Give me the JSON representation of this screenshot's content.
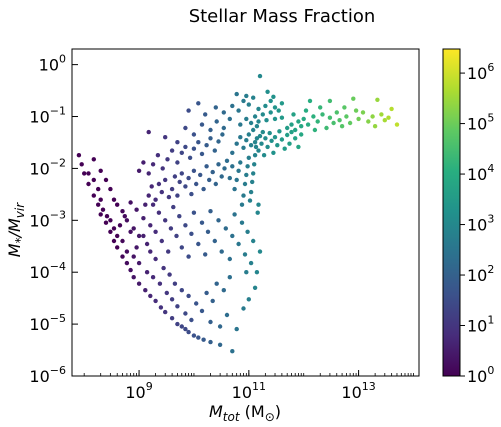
{
  "chart_data": {
    "type": "scatter",
    "title": "Stellar Mass Fraction",
    "xlabel": "M_tot (M_⊙)",
    "ylabel": "M*/M_vir",
    "x_scale": "log",
    "y_scale": "log",
    "xlim": [
      60000000,
      126000000000000.0
    ],
    "ylim": [
      1e-06,
      2.0
    ],
    "x_ticks": [
      {
        "value": 1000000000,
        "base": "10",
        "exp": "9"
      },
      {
        "value": 100000000000,
        "base": "10",
        "exp": "11"
      },
      {
        "value": 10000000000000,
        "base": "10",
        "exp": "13"
      }
    ],
    "y_ticks": [
      {
        "value": 1e-06,
        "base": "10",
        "exp": "−6"
      },
      {
        "value": 1e-05,
        "base": "10",
        "exp": "−5"
      },
      {
        "value": 0.0001,
        "base": "10",
        "exp": "−4"
      },
      {
        "value": 0.001,
        "base": "10",
        "exp": "−3"
      },
      {
        "value": 0.01,
        "base": "10",
        "exp": "−2"
      },
      {
        "value": 0.1,
        "base": "10",
        "exp": "−1"
      },
      {
        "value": 1,
        "base": "10",
        "exp": "0"
      }
    ],
    "colorbar": {
      "colormap": "viridis",
      "scale": "log",
      "range": [
        1,
        3000000
      ],
      "ticks": [
        {
          "value": 1,
          "base": "10",
          "exp": "0"
        },
        {
          "value": 10,
          "base": "10",
          "exp": "1"
        },
        {
          "value": 100,
          "base": "10",
          "exp": "2"
        },
        {
          "value": 1000,
          "base": "10",
          "exp": "3"
        },
        {
          "value": 10000,
          "base": "10",
          "exp": "4"
        },
        {
          "value": 100000,
          "base": "10",
          "exp": "5"
        },
        {
          "value": 1000000,
          "base": "10",
          "exp": "6"
        }
      ]
    },
    "grid": false,
    "legend": "none",
    "point_color_by": "colorbar value (approx. one decade per log-decade of M_tot)",
    "points": [
      [
        80000000.0,
        0.018
      ],
      [
        90000000.0,
        0.012
      ],
      [
        100000000.0,
        0.008
      ],
      [
        120000000.0,
        0.005
      ],
      [
        150000000.0,
        0.003
      ],
      [
        180000000.0,
        0.002
      ],
      [
        200000000.0,
        0.0013
      ],
      [
        250000000.0,
        0.0009
      ],
      [
        300000000.0,
        0.0006
      ],
      [
        350000000.0,
        0.0004
      ],
      [
        400000000.0,
        0.0003
      ],
      [
        500000000.0,
        0.0002
      ],
      [
        600000000.0,
        0.00015
      ],
      [
        700000000.0,
        0.00011
      ],
      [
        800000000.0,
        8e-05
      ],
      [
        1000000000.0,
        6e-05
      ],
      [
        1300000000.0,
        4.5e-05
      ],
      [
        1600000000.0,
        3.5e-05
      ],
      [
        2000000000.0,
        2.8e-05
      ],
      [
        2500000000.0,
        2.1e-05
      ],
      [
        3000000000.0,
        1.7e-05
      ],
      [
        4000000000.0,
        1.3e-05
      ],
      [
        5000000000.0,
        1e-05
      ],
      [
        6000000000.0,
        9e-06
      ],
      [
        7000000000.0,
        8e-06
      ],
      [
        8000000000.0,
        7e-06
      ],
      [
        10000000000.0,
        6e-06
      ],
      [
        12000000000.0,
        5.5e-06
      ],
      [
        15000000000.0,
        5e-06
      ],
      [
        20000000000.0,
        4.5e-06
      ],
      [
        30000000000.0,
        4e-06
      ],
      [
        50000000000.0,
        3e-06
      ],
      [
        20000000000.0,
        1.1e-05
      ],
      [
        30000000000.0,
        9e-06
      ],
      [
        40000000000.0,
        1.5e-05
      ],
      [
        60000000000.0,
        8e-06
      ],
      [
        80000000000.0,
        2e-05
      ],
      [
        100000000000.0,
        3e-05
      ],
      [
        130000000000.0,
        5e-05
      ],
      [
        90000000000.0,
        0.0001
      ],
      [
        120000000.0,
        0.008
      ],
      [
        150000000.0,
        0.006
      ],
      [
        180000000.0,
        0.004
      ],
      [
        200000000.0,
        0.0025
      ],
      [
        220000000.0,
        0.0016
      ],
      [
        260000000.0,
        0.0012
      ],
      [
        300000000.0,
        0.001
      ],
      [
        350000000.0,
        0.0007
      ],
      [
        400000000.0,
        0.0005
      ],
      [
        450000000.0,
        0.0008
      ],
      [
        500000000.0,
        0.0004
      ],
      [
        550000000.0,
        0.0012
      ],
      [
        600000000.0,
        0.00025
      ],
      [
        700000000.0,
        0.0006
      ],
      [
        800000000.0,
        0.0002
      ],
      [
        900000000.0,
        0.0003
      ],
      [
        1000000000.0,
        0.00015
      ],
      [
        1200000000.0,
        0.0005
      ],
      [
        1400000000.0,
        0.0001
      ],
      [
        1600000000.0,
        0.00025
      ],
      [
        1800000000.0,
        8e-05
      ],
      [
        2000000000.0,
        0.00018
      ],
      [
        2400000000.0,
        6e-05
      ],
      [
        2800000000.0,
        0.00012
      ],
      [
        3200000000.0,
        4e-05
      ],
      [
        3600000000.0,
        9e-05
      ],
      [
        4000000000.0,
        3e-05
      ],
      [
        4500000000.0,
        6e-05
      ],
      [
        5000000000.0,
        2.2e-05
      ],
      [
        6000000000.0,
        4.5e-05
      ],
      [
        7000000000.0,
        1.6e-05
      ],
      [
        8000000000.0,
        3.5e-05
      ],
      [
        9000000000.0,
        1.2e-05
      ],
      [
        11000000000.0,
        2.5e-05
      ],
      [
        14000000000.0,
        1.8e-05
      ],
      [
        17000000000.0,
        4e-05
      ],
      [
        22000000000.0,
        2.8e-05
      ],
      [
        26000000000.0,
        6e-05
      ],
      [
        35000000000.0,
        4.5e-05
      ],
      [
        45000000000.0,
        8e-05
      ],
      [
        150000000.0,
        0.015
      ],
      [
        200000000.0,
        0.009
      ],
      [
        250000000.0,
        0.006
      ],
      [
        300000000.0,
        0.004
      ],
      [
        350000000.0,
        0.0025
      ],
      [
        400000000.0,
        0.002
      ],
      [
        500000000.0,
        0.0015
      ],
      [
        600000000.0,
        0.001
      ],
      [
        700000000.0,
        0.0022
      ],
      [
        800000000.0,
        0.0007
      ],
      [
        900000000.0,
        0.0016
      ],
      [
        1000000000.0,
        0.0005
      ],
      [
        1200000000.0,
        0.0011
      ],
      [
        1400000000.0,
        0.00035
      ],
      [
        1600000000.0,
        0.0008
      ],
      [
        1800000000.0,
        0.002
      ],
      [
        2000000000.0,
        0.0006
      ],
      [
        2300000000.0,
        0.0014
      ],
      [
        2600000000.0,
        0.0004
      ],
      [
        3000000000.0,
        0.001
      ],
      [
        3400000000.0,
        0.00025
      ],
      [
        3800000000.0,
        0.0007
      ],
      [
        4200000000.0,
        0.0018
      ],
      [
        4800000000.0,
        0.0005
      ],
      [
        5400000000.0,
        0.0012
      ],
      [
        6000000000.0,
        0.0003
      ],
      [
        7000000000.0,
        0.0008
      ],
      [
        8000000000.0,
        0.0002
      ],
      [
        9000000000.0,
        0.00055
      ],
      [
        10000000000.0,
        0.0014
      ],
      [
        12000000000.0,
        0.00035
      ],
      [
        14000000000.0,
        0.0009
      ],
      [
        16000000000.0,
        0.00022
      ],
      [
        18000000000.0,
        0.0006
      ],
      [
        20000000000.0,
        0.0015
      ],
      [
        24000000000.0,
        0.0004
      ],
      [
        28000000000.0,
        0.001
      ],
      [
        32000000000.0,
        0.00025
      ],
      [
        38000000000.0,
        0.0007
      ],
      [
        45000000000.0,
        0.00018
      ],
      [
        50000000000.0,
        0.0005
      ],
      [
        55000000000.0,
        0.0013
      ],
      [
        65000000000.0,
        0.00035
      ],
      [
        75000000000.0,
        0.0009
      ],
      [
        85000000000.0,
        0.00022
      ],
      [
        95000000000.0,
        0.0006
      ],
      [
        110000000000.0,
        0.00015
      ],
      [
        120000000000.0,
        0.0004
      ],
      [
        140000000000.0,
        0.0001
      ],
      [
        160000000000.0,
        0.00025
      ],
      [
        1300000000.0,
        0.002
      ],
      [
        1500000000.0,
        0.003
      ],
      [
        1700000000.0,
        0.0045
      ],
      [
        2000000000.0,
        0.0025
      ],
      [
        2300000000.0,
        0.005
      ],
      [
        2600000000.0,
        0.0035
      ],
      [
        3000000000.0,
        0.006
      ],
      [
        3500000000.0,
        0.0028
      ],
      [
        4000000000.0,
        0.004
      ],
      [
        4500000000.0,
        0.007
      ],
      [
        5000000000.0,
        0.003
      ],
      [
        5500000000.0,
        0.0055
      ],
      [
        6000000000.0,
        0.008
      ],
      [
        7000000000.0,
        0.0045
      ],
      [
        8000000000.0,
        0.0065
      ],
      [
        9000000000.0,
        0.0032
      ],
      [
        10000000000.0,
        0.009
      ],
      [
        11000000000.0,
        0.005
      ],
      [
        13000000000.0,
        0.0075
      ],
      [
        15000000000.0,
        0.004
      ],
      [
        17000000000.0,
        0.011
      ],
      [
        19000000000.0,
        0.006
      ],
      [
        22000000000.0,
        0.0085
      ],
      [
        25000000000.0,
        0.005
      ],
      [
        28000000000.0,
        0.012
      ],
      [
        32000000000.0,
        0.007
      ],
      [
        36000000000.0,
        0.01
      ],
      [
        40000000000.0,
        0.014
      ],
      [
        45000000000.0,
        0.0065
      ],
      [
        50000000000.0,
        0.011
      ],
      [
        1000000000.0,
        0.009
      ],
      [
        1200000000.0,
        0.013
      ],
      [
        1500000000.0,
        0.008
      ],
      [
        1800000000.0,
        0.012
      ],
      [
        2200000000.0,
        0.018
      ],
      [
        2700000000.0,
        0.01
      ],
      [
        3300000000.0,
        0.015
      ],
      [
        4000000000.0,
        0.022
      ],
      [
        5000000000.0,
        0.013
      ],
      [
        6000000000.0,
        0.02
      ],
      [
        7000000000.0,
        0.026
      ],
      [
        8500000000.0,
        0.016
      ],
      [
        10000000000.0,
        0.024
      ],
      [
        12000000000.0,
        0.032
      ],
      [
        14000000000.0,
        0.019
      ],
      [
        17000000000.0,
        0.028
      ],
      [
        20000000000.0,
        0.038
      ],
      [
        24000000000.0,
        0.022
      ],
      [
        28000000000.0,
        0.033
      ],
      [
        33000000000.0,
        0.045
      ],
      [
        1500000000.0,
        0.05
      ],
      [
        3000000000.0,
        0.04
      ],
      [
        5000000000.0,
        0.032
      ],
      [
        7000000000.0,
        0.06
      ],
      [
        10000000000.0,
        0.045
      ],
      [
        14000000000.0,
        0.07
      ],
      [
        20000000000.0,
        0.055
      ],
      [
        26000000000.0,
        0.08
      ],
      [
        35000000000.0,
        0.06
      ],
      [
        45000000000.0,
        0.09
      ],
      [
        8000000000.0,
        0.13
      ],
      [
        12000000000.0,
        0.18
      ],
      [
        16000000000.0,
        0.11
      ],
      [
        25000000000.0,
        0.15
      ],
      [
        35000000000.0,
        0.12
      ],
      [
        50000000000.0,
        0.16
      ],
      [
        65000000000.0,
        0.13
      ],
      [
        80000000000.0,
        0.2
      ],
      [
        60000000000.0,
        0.27
      ],
      [
        90000000000.0,
        0.25
      ],
      [
        55000000000.0,
        0.004
      ],
      [
        60000000000.0,
        0.006
      ],
      [
        65000000000.0,
        0.009
      ],
      [
        70000000000.0,
        0.013
      ],
      [
        75000000000.0,
        0.002
      ],
      [
        80000000000.0,
        0.003
      ],
      [
        85000000000.0,
        0.005
      ],
      [
        90000000000.0,
        0.0075
      ],
      [
        95000000000.0,
        0.011
      ],
      [
        100000000000.0,
        0.016
      ],
      [
        105000000000.0,
        0.0024
      ],
      [
        110000000000.0,
        0.0035
      ],
      [
        115000000000.0,
        0.0055
      ],
      [
        120000000000.0,
        0.008
      ],
      [
        125000000000.0,
        0.012
      ],
      [
        130000000000.0,
        0.018
      ],
      [
        135000000000.0,
        0.026
      ],
      [
        140000000000.0,
        0.038
      ],
      [
        145000000000.0,
        0.0014
      ],
      [
        150000000000.0,
        0.002
      ],
      [
        50000000000.0,
        0.02
      ],
      [
        60000000000.0,
        0.03
      ],
      [
        70000000000.0,
        0.04
      ],
      [
        80000000000.0,
        0.025
      ],
      [
        90000000000.0,
        0.035
      ],
      [
        100000000000.0,
        0.045
      ],
      [
        110000000000.0,
        0.028
      ],
      [
        120000000000.0,
        0.055
      ],
      [
        130000000000.0,
        0.032
      ],
      [
        140000000000.0,
        0.065
      ],
      [
        150000000000.0,
        0.022
      ],
      [
        160000000000.0,
        0.042
      ],
      [
        170000000000.0,
        0.03
      ],
      [
        180000000000.0,
        0.05
      ],
      [
        190000000000.0,
        0.018
      ],
      [
        200000000000.0,
        0.038
      ],
      [
        220000000000.0,
        0.026
      ],
      [
        240000000000.0,
        0.048
      ],
      [
        260000000000.0,
        0.034
      ],
      [
        280000000000.0,
        0.02
      ],
      [
        300000000000.0,
        0.04
      ],
      [
        330000000000.0,
        0.028
      ],
      [
        360000000000.0,
        0.052
      ],
      [
        400000000000.0,
        0.036
      ],
      [
        450000000000.0,
        0.024
      ],
      [
        500000000000.0,
        0.044
      ],
      [
        550000000000.0,
        0.03
      ],
      [
        600000000000.0,
        0.05
      ],
      [
        700000000000.0,
        0.038
      ],
      [
        800000000000.0,
        0.026
      ],
      [
        70000000000.0,
        0.07
      ],
      [
        90000000000.0,
        0.09
      ],
      [
        110000000000.0,
        0.075
      ],
      [
        130000000000.0,
        0.1
      ],
      [
        150000000000.0,
        0.08
      ],
      [
        180000000000.0,
        0.11
      ],
      [
        210000000000.0,
        0.085
      ],
      [
        250000000000.0,
        0.12
      ],
      [
        300000000000.0,
        0.09
      ],
      [
        350000000000.0,
        0.13
      ],
      [
        150000000000.0,
        0.14
      ],
      [
        200000000000.0,
        0.16
      ],
      [
        250000000000.0,
        0.2
      ],
      [
        300000000000.0,
        0.15
      ],
      [
        400000000000.0,
        0.18
      ],
      [
        160000000000.0,
        0.6
      ],
      [
        220000000000.0,
        0.3
      ],
      [
        120000000000.0,
        0.23
      ],
      [
        100000000000.0,
        0.17
      ],
      [
        280000000000.0,
        0.24
      ],
      [
        500000000000.0,
        0.06
      ],
      [
        600000000000.0,
        0.07
      ],
      [
        700000000000.0,
        0.055
      ],
      [
        800000000000.0,
        0.08
      ],
      [
        900000000000.0,
        0.065
      ],
      [
        1000000000000.0,
        0.09
      ],
      [
        1200000000000.0,
        0.07
      ],
      [
        1500000000000.0,
        0.1
      ],
      [
        1800000000000.0,
        0.08
      ],
      [
        2200000000000.0,
        0.11
      ],
      [
        2600000000000.0,
        0.06
      ],
      [
        3000000000000.0,
        0.095
      ],
      [
        3500000000000.0,
        0.075
      ],
      [
        4000000000000.0,
        0.12
      ],
      [
        4500000000000.0,
        0.085
      ],
      [
        5000000000000.0,
        0.065
      ],
      [
        6000000000000.0,
        0.1
      ],
      [
        7000000000000.0,
        0.075
      ],
      [
        8000000000000.0,
        0.22
      ],
      [
        10000000000000.0,
        0.09
      ],
      [
        12000000000000.0,
        0.12
      ],
      [
        15000000000000.0,
        0.08
      ],
      [
        18000000000000.0,
        0.1
      ],
      [
        22000000000000.0,
        0.21
      ],
      [
        26000000000000.0,
        0.11
      ],
      [
        30000000000000.0,
        0.085
      ],
      [
        35000000000000.0,
        0.095
      ],
      [
        40000000000000.0,
        0.14
      ],
      [
        50000000000000.0,
        0.07
      ],
      [
        1300000000000.0,
        0.2
      ],
      [
        2000000000000.0,
        0.15
      ],
      [
        1100000000000.0,
        0.13
      ],
      [
        1600000000000.0,
        0.055
      ],
      [
        400000000000.0,
        0.095
      ],
      [
        650000000000.0,
        0.11
      ],
      [
        900000000000.0,
        0.045
      ],
      [
        5500000000000.0,
        0.15
      ],
      [
        9000000000000.0,
        0.13
      ],
      [
        20000000000000.0,
        0.065
      ],
      [
        3000000000000.0,
        0.2
      ]
    ]
  }
}
